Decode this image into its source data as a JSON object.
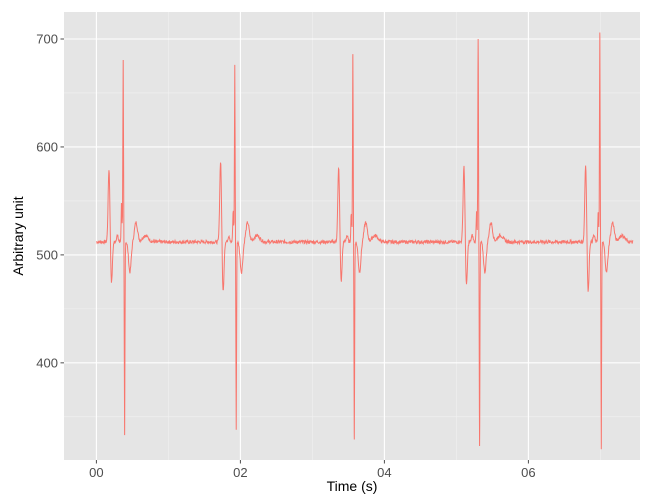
{
  "chart_data": {
    "type": "line",
    "xlabel": "Time (s)",
    "ylabel": "Arbitrary unit",
    "xlim": [
      -0.45,
      7.55
    ],
    "ylim": [
      310,
      725
    ],
    "x_ticks": [
      {
        "value": 0,
        "label": "00"
      },
      {
        "value": 2,
        "label": "02"
      },
      {
        "value": 4,
        "label": "04"
      },
      {
        "value": 6,
        "label": "06"
      }
    ],
    "y_ticks": [
      {
        "value": 400,
        "label": "400"
      },
      {
        "value": 500,
        "label": "500"
      },
      {
        "value": 600,
        "label": "600"
      },
      {
        "value": 700,
        "label": "700"
      }
    ],
    "grid": true,
    "legend": "none",
    "baseline": 512,
    "x_range": [
      0,
      7.45
    ],
    "beats": [
      {
        "t": 0.38,
        "p_peak": 580,
        "q_dip": 474,
        "pre_r": 550,
        "r_peak": 680,
        "s_dip": 333,
        "t_dip": 484
      },
      {
        "t": 1.93,
        "p_peak": 588,
        "q_dip": 465,
        "pre_r": 542,
        "r_peak": 676,
        "s_dip": 338,
        "t_dip": 484
      },
      {
        "t": 3.57,
        "p_peak": 581,
        "q_dip": 475,
        "pre_r": 540,
        "r_peak": 686,
        "s_dip": 329,
        "t_dip": 484
      },
      {
        "t": 5.31,
        "p_peak": 583,
        "q_dip": 471,
        "pre_r": 540,
        "r_peak": 700,
        "s_dip": 323,
        "t_dip": 484
      },
      {
        "t": 7.0,
        "p_peak": 584,
        "q_dip": 465,
        "pre_r": 542,
        "r_peak": 706,
        "s_dip": 320,
        "t_dip": 484
      }
    ],
    "colors": {
      "line": "#f8766d",
      "panel": "#e5e5e5",
      "grid_major": "#ffffff",
      "grid_minor": "#f2f2f2",
      "tick": "#4d4d4d"
    }
  }
}
